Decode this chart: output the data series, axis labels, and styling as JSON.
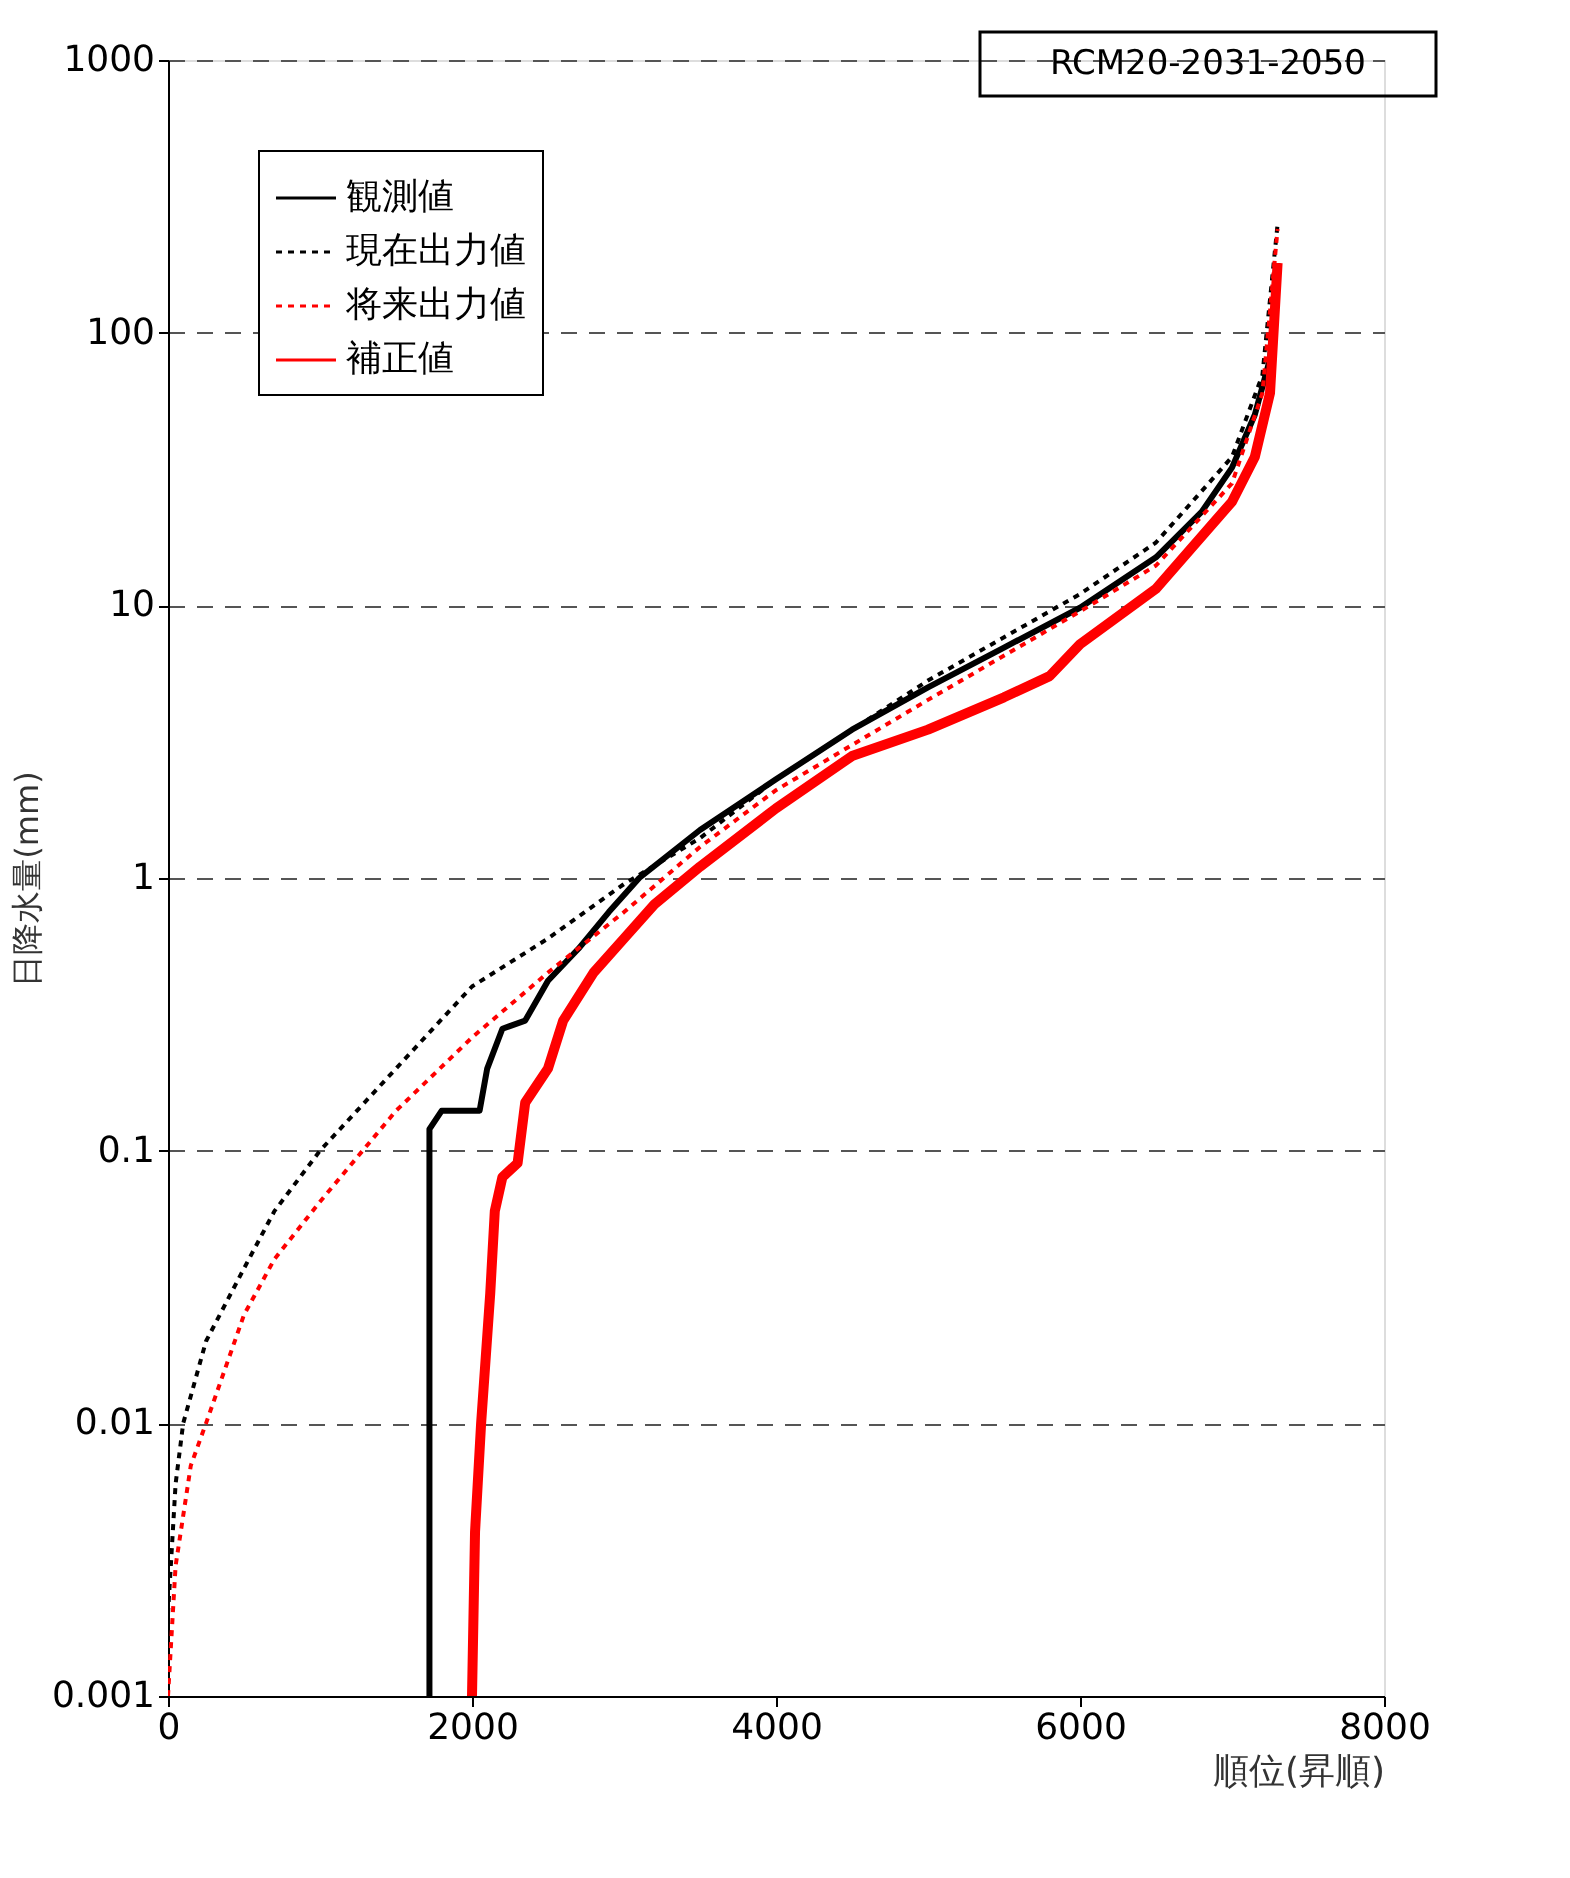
{
  "chart_data": {
    "type": "line",
    "xlabel": "順位(昇順)",
    "ylabel": "日降水量(mm)",
    "annotations": [
      "RCM20-2031-2050"
    ],
    "log": "y",
    "grid": "y",
    "legend": "top left",
    "xlim": [
      0,
      8000
    ],
    "xticks": [
      0,
      2000,
      4000,
      6000,
      8000
    ],
    "ylim": [
      0.001,
      1000
    ],
    "yticks": [
      0.001,
      0.01,
      0.1,
      1,
      10,
      100,
      1000
    ],
    "series": [
      {
        "name": "観測値",
        "color": "#000000",
        "line_style": "solid",
        "x": [
          1720,
          1720,
          1800,
          2050,
          2100,
          2200,
          2350,
          2500,
          2700,
          2900,
          3100,
          3500,
          4000,
          4500,
          5000,
          5500,
          6000,
          6500,
          6800,
          7000,
          7150,
          7250,
          7300
        ],
        "values": [
          0.001,
          0.12,
          0.14,
          0.14,
          0.2,
          0.28,
          0.3,
          0.42,
          0.55,
          0.75,
          1.0,
          1.5,
          2.3,
          3.5,
          5.0,
          7.0,
          9.8,
          15,
          22,
          32,
          50,
          80,
          180
        ]
      },
      {
        "name": "現在出力値",
        "color": "#000000",
        "line_style": "dotted",
        "x": [
          0,
          50,
          100,
          250,
          500,
          700,
          1000,
          1500,
          2000,
          2500,
          3000,
          3500,
          4000,
          5000,
          6000,
          6500,
          7000,
          7200,
          7300
        ],
        "values": [
          0.002,
          0.006,
          0.01,
          0.02,
          0.037,
          0.06,
          0.1,
          0.2,
          0.4,
          0.6,
          0.95,
          1.4,
          2.3,
          5.3,
          11,
          17,
          35,
          70,
          250
        ]
      },
      {
        "name": "将来出力値",
        "color": "#ff0000",
        "line_style": "dotted",
        "x": [
          0,
          50,
          150,
          250,
          500,
          700,
          1000,
          1500,
          2000,
          2500,
          3000,
          3500,
          4000,
          5000,
          6000,
          6500,
          7000,
          7200,
          7300
        ],
        "values": [
          0.001,
          0.003,
          0.007,
          0.01,
          0.025,
          0.04,
          0.065,
          0.14,
          0.26,
          0.45,
          0.75,
          1.3,
          2.1,
          4.5,
          9.5,
          14,
          28,
          60,
          240
        ]
      },
      {
        "name": "補正値",
        "color": "#ff0000",
        "line_style": "solid",
        "x": [
          2000,
          2020,
          2060,
          2120,
          2150,
          2200,
          2300,
          2350,
          2500,
          2600,
          2800,
          3000,
          3200,
          3500,
          4000,
          4500,
          5000,
          5500,
          5800,
          6000,
          6500,
          7000,
          7150,
          7250,
          7300
        ],
        "values": [
          0.001,
          0.004,
          0.01,
          0.03,
          0.06,
          0.08,
          0.09,
          0.15,
          0.2,
          0.3,
          0.45,
          0.6,
          0.8,
          1.1,
          1.8,
          2.8,
          3.5,
          4.6,
          5.5,
          7.2,
          11.5,
          24,
          35,
          60,
          180
        ]
      }
    ]
  }
}
